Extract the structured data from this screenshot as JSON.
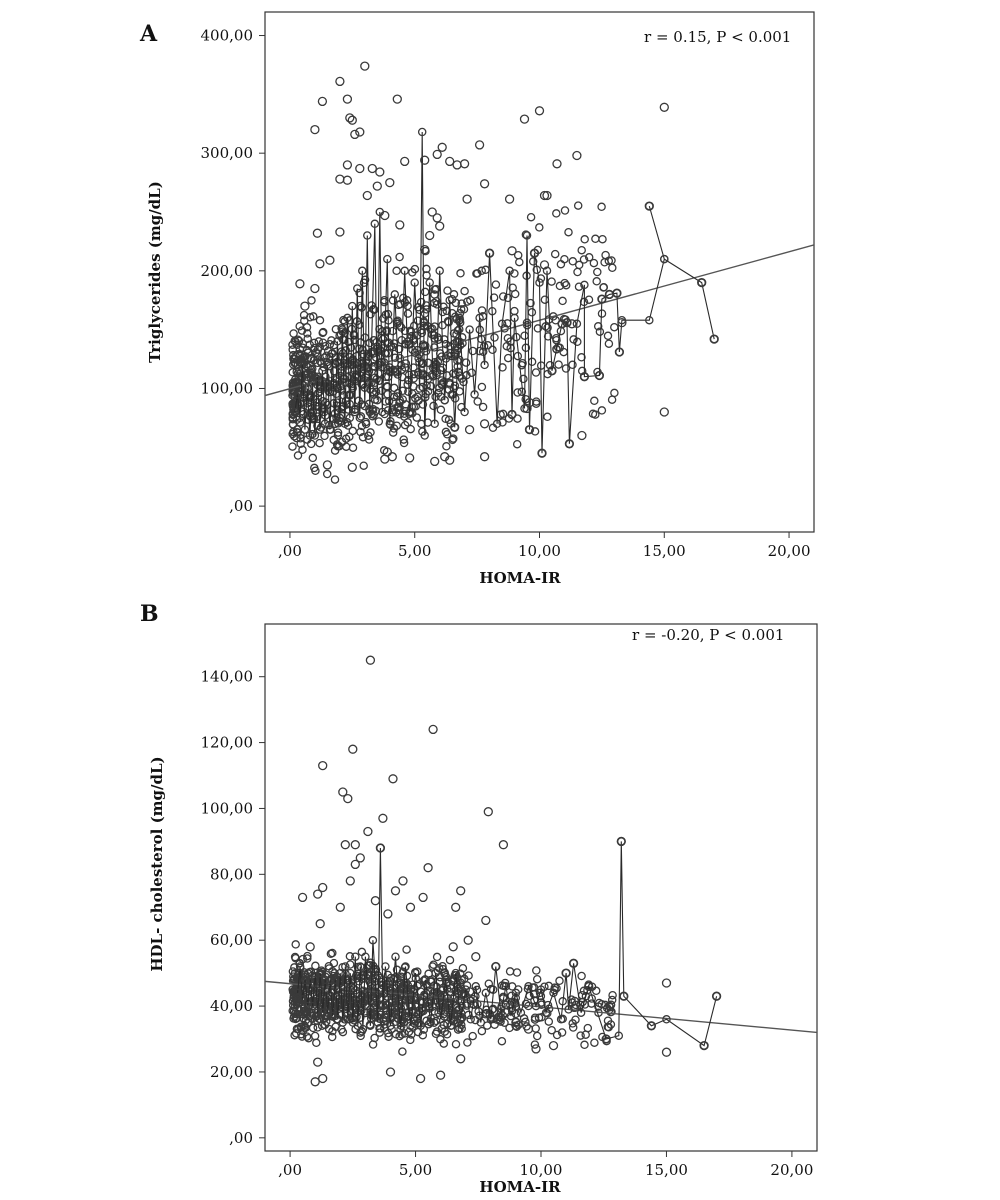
{
  "chart_data": [
    {
      "panel": "A",
      "type": "scatter",
      "annotation": "r = 0.15, P < 0.001",
      "xlabel": "HOMA-IR",
      "ylabel": "Triglycerides (mg/dL)",
      "xlim": [
        -1,
        21
      ],
      "ylim": [
        -22,
        420
      ],
      "x_ticks": [
        0,
        5,
        10,
        15,
        20
      ],
      "x_tick_labels": [
        ",00",
        "5,00",
        "10,00",
        "15,00",
        "20,00"
      ],
      "y_ticks": [
        0,
        100,
        200,
        300,
        400
      ],
      "y_tick_labels": [
        ",00",
        "100,00",
        "200,00",
        "300,00",
        "400,00"
      ],
      "fit_line": {
        "x": [
          -1,
          21
        ],
        "y": [
          94,
          222
        ]
      },
      "outlier_points": [
        [
          0.4,
          189
        ],
        [
          1.0,
          320
        ],
        [
          1.3,
          344
        ],
        [
          1.1,
          232
        ],
        [
          2.0,
          361
        ],
        [
          2.3,
          346
        ],
        [
          2.4,
          330
        ],
        [
          2.5,
          328
        ],
        [
          2.8,
          318
        ],
        [
          2.6,
          316
        ],
        [
          3.0,
          374
        ],
        [
          2.3,
          290
        ],
        [
          2.8,
          287
        ],
        [
          3.3,
          287
        ],
        [
          3.6,
          284
        ],
        [
          2.0,
          278
        ],
        [
          2.3,
          277
        ],
        [
          4.3,
          346
        ],
        [
          4.6,
          293
        ],
        [
          5.4,
          294
        ],
        [
          6.1,
          305
        ],
        [
          5.9,
          299
        ],
        [
          6.4,
          293
        ],
        [
          6.7,
          290
        ],
        [
          7.0,
          291
        ],
        [
          7.6,
          307
        ],
        [
          7.8,
          274
        ],
        [
          7.1,
          261
        ],
        [
          8.8,
          261
        ],
        [
          9.4,
          329
        ],
        [
          10.0,
          336
        ],
        [
          10.7,
          291
        ],
        [
          11.5,
          298
        ],
        [
          10.2,
          264
        ],
        [
          10.3,
          264
        ],
        [
          15.0,
          339
        ],
        [
          15.0,
          80
        ],
        [
          12.4,
          111
        ],
        [
          8.9,
          217
        ],
        [
          9.8,
          215
        ],
        [
          10.2,
          205
        ],
        [
          8.0,
          215
        ],
        [
          9.5,
          83
        ],
        [
          9.6,
          88
        ],
        [
          10.1,
          45
        ],
        [
          11.2,
          53
        ],
        [
          11.7,
          60
        ],
        [
          7.8,
          42
        ],
        [
          6.2,
          42
        ],
        [
          5.8,
          38
        ],
        [
          6.4,
          39
        ],
        [
          4.8,
          41
        ],
        [
          7.2,
          65
        ],
        [
          7.8,
          70
        ],
        [
          8.9,
          78
        ],
        [
          9.6,
          65
        ],
        [
          6.6,
          67
        ],
        [
          10.5,
          115
        ],
        [
          11.8,
          110
        ],
        [
          11.1,
          156
        ],
        [
          10.9,
          155
        ],
        [
          11.3,
          155
        ],
        [
          12.8,
          180
        ],
        [
          13.1,
          181
        ],
        [
          12.5,
          176
        ],
        [
          14.4,
          255
        ],
        [
          16.5,
          190
        ],
        [
          17.0,
          142
        ],
        [
          13.2,
          131
        ],
        [
          13.3,
          156
        ],
        [
          5.7,
          250
        ],
        [
          5.9,
          245
        ],
        [
          6.0,
          238
        ],
        [
          5.4,
          218
        ],
        [
          5.6,
          230
        ],
        [
          4.0,
          275
        ],
        [
          3.1,
          264
        ],
        [
          3.5,
          272
        ],
        [
          3.8,
          247
        ],
        [
          4.4,
          239
        ],
        [
          2.0,
          233
        ],
        [
          1.6,
          209
        ],
        [
          1.2,
          206
        ],
        [
          1.0,
          185
        ],
        [
          0.6,
          170
        ],
        [
          4.1,
          42
        ],
        [
          3.9,
          46
        ],
        [
          1.5,
          35
        ],
        [
          2.5,
          33
        ],
        [
          3.8,
          40
        ]
      ],
      "trace_points": [
        [
          14.4,
          255
        ],
        [
          15.0,
          210
        ],
        [
          16.5,
          190
        ],
        [
          17.0,
          142
        ],
        [
          16.5,
          190
        ],
        [
          15.0,
          210
        ],
        [
          14.4,
          158
        ],
        [
          13.3,
          158
        ],
        [
          13.2,
          131
        ],
        [
          13.1,
          181
        ],
        [
          12.8,
          180
        ],
        [
          12.5,
          176
        ],
        [
          12.4,
          111
        ],
        [
          11.8,
          110
        ],
        [
          11.8,
          188
        ],
        [
          11.5,
          155
        ],
        [
          11.2,
          53
        ],
        [
          11.1,
          156
        ],
        [
          10.9,
          155
        ],
        [
          10.5,
          115
        ],
        [
          10.3,
          200
        ],
        [
          10.1,
          45
        ],
        [
          10.0,
          190
        ],
        [
          9.8,
          215
        ],
        [
          9.6,
          65
        ],
        [
          9.5,
          230
        ],
        [
          9.4,
          83
        ],
        [
          9.0,
          160
        ],
        [
          8.9,
          78
        ],
        [
          8.8,
          200
        ],
        [
          8.5,
          155
        ],
        [
          8.3,
          70
        ],
        [
          8.0,
          215
        ],
        [
          7.8,
          120
        ],
        [
          7.6,
          160
        ],
        [
          7.4,
          95
        ],
        [
          7.2,
          150
        ],
        [
          7.0,
          80
        ],
        [
          6.8,
          160
        ],
        [
          6.6,
          67
        ],
        [
          6.4,
          175
        ],
        [
          6.2,
          90
        ],
        [
          6.0,
          200
        ],
        [
          5.8,
          70
        ],
        [
          5.6,
          190
        ],
        [
          5.4,
          60
        ],
        [
          5.3,
          318
        ],
        [
          5.2,
          100
        ],
        [
          5.0,
          190
        ],
        [
          4.8,
          80
        ],
        [
          4.6,
          200
        ],
        [
          4.4,
          90
        ],
        [
          4.2,
          180
        ],
        [
          4.0,
          70
        ],
        [
          3.9,
          210
        ],
        [
          3.7,
          80
        ],
        [
          3.6,
          250
        ],
        [
          3.5,
          90
        ],
        [
          3.4,
          240
        ],
        [
          3.2,
          80
        ],
        [
          3.1,
          230
        ],
        [
          3.0,
          85
        ],
        [
          2.9,
          200
        ],
        [
          2.8,
          75
        ],
        [
          2.7,
          185
        ],
        [
          2.6,
          80
        ],
        [
          2.5,
          170
        ],
        [
          2.4,
          75
        ],
        [
          2.3,
          160
        ],
        [
          2.2,
          70
        ],
        [
          2.1,
          150
        ],
        [
          2.0,
          75
        ],
        [
          1.9,
          140
        ],
        [
          1.8,
          70
        ],
        [
          1.7,
          130
        ],
        [
          1.6,
          65
        ],
        [
          1.5,
          120
        ],
        [
          1.4,
          70
        ],
        [
          1.3,
          115
        ],
        [
          1.2,
          65
        ],
        [
          1.1,
          110
        ],
        [
          1.0,
          60
        ],
        [
          0.9,
          105
        ],
        [
          0.8,
          60
        ],
        [
          0.7,
          100
        ],
        [
          0.6,
          65
        ],
        [
          0.5,
          120
        ],
        [
          0.4,
          75
        ],
        [
          0.3,
          95
        ],
        [
          0.2,
          80
        ]
      ]
    },
    {
      "panel": "B",
      "type": "scatter",
      "annotation": "r = -0.20, P < 0.001",
      "xlabel": "HOMA-IR",
      "ylabel": "HDL- cholesterol (mg/dL)",
      "xlim": [
        -1,
        21
      ],
      "ylim": [
        -4,
        156
      ],
      "x_ticks": [
        0,
        5,
        10,
        15,
        20
      ],
      "x_tick_labels": [
        ",00",
        "5,00",
        "10,00",
        "15,00",
        "20,00"
      ],
      "y_ticks": [
        0,
        20,
        40,
        60,
        80,
        100,
        120,
        140
      ],
      "y_tick_labels": [
        ",00",
        "20,00",
        "40,00",
        "60,00",
        "80,00",
        "100,00",
        "120,00",
        "140,00"
      ],
      "fit_line": {
        "x": [
          -1,
          21
        ],
        "y": [
          47.5,
          32
        ]
      },
      "outlier_points": [
        [
          3.2,
          145
        ],
        [
          5.7,
          124
        ],
        [
          2.5,
          118
        ],
        [
          1.3,
          113
        ],
        [
          4.1,
          109
        ],
        [
          2.1,
          105
        ],
        [
          2.3,
          103
        ],
        [
          7.9,
          99
        ],
        [
          2.6,
          89
        ],
        [
          8.5,
          89
        ],
        [
          3.7,
          97
        ],
        [
          3.1,
          93
        ],
        [
          3.6,
          88
        ],
        [
          2.2,
          89
        ],
        [
          5.5,
          82
        ],
        [
          2.6,
          83
        ],
        [
          2.4,
          78
        ],
        [
          1.3,
          76
        ],
        [
          6.8,
          75
        ],
        [
          7.8,
          66
        ],
        [
          0.5,
          73
        ],
        [
          1.1,
          74
        ],
        [
          1.2,
          65
        ],
        [
          6.6,
          70
        ],
        [
          5.3,
          73
        ],
        [
          0.8,
          58
        ],
        [
          1.1,
          23
        ],
        [
          1.0,
          17
        ],
        [
          1.3,
          18
        ],
        [
          4.0,
          20
        ],
        [
          5.2,
          18
        ],
        [
          6.0,
          19
        ],
        [
          6.8,
          24
        ],
        [
          9.8,
          27
        ],
        [
          12.6,
          30
        ],
        [
          13.2,
          90
        ],
        [
          13.3,
          43
        ],
        [
          14.4,
          34
        ],
        [
          15.0,
          47
        ],
        [
          15.0,
          26
        ],
        [
          16.5,
          28
        ],
        [
          17.0,
          43
        ],
        [
          11.3,
          53
        ],
        [
          11.0,
          50
        ],
        [
          11.9,
          46
        ],
        [
          10.5,
          28
        ],
        [
          9.5,
          33
        ],
        [
          9.0,
          35
        ],
        [
          8.6,
          38
        ],
        [
          8.2,
          52
        ],
        [
          7.4,
          55
        ],
        [
          7.1,
          60
        ],
        [
          6.5,
          58
        ],
        [
          4.5,
          78
        ],
        [
          4.2,
          75
        ],
        [
          3.9,
          68
        ],
        [
          2.8,
          85
        ],
        [
          3.4,
          72
        ],
        [
          4.8,
          70
        ],
        [
          2.0,
          70
        ]
      ],
      "trace_points": [
        [
          17.0,
          43
        ],
        [
          16.5,
          28
        ],
        [
          15.0,
          36
        ],
        [
          14.4,
          34
        ],
        [
          13.3,
          43
        ],
        [
          13.2,
          90
        ],
        [
          13.1,
          31
        ],
        [
          12.6,
          30
        ],
        [
          11.9,
          46
        ],
        [
          11.6,
          38
        ],
        [
          11.3,
          53
        ],
        [
          11.1,
          39
        ],
        [
          11.0,
          50
        ],
        [
          10.8,
          36
        ],
        [
          10.5,
          44
        ],
        [
          10.2,
          38
        ],
        [
          10.0,
          45
        ],
        [
          9.8,
          40
        ],
        [
          9.5,
          46
        ],
        [
          9.2,
          38
        ],
        [
          9.0,
          44
        ],
        [
          8.8,
          37
        ],
        [
          8.6,
          46
        ],
        [
          8.4,
          38
        ],
        [
          8.2,
          52
        ],
        [
          8.0,
          36
        ],
        [
          7.8,
          44
        ],
        [
          7.6,
          35
        ],
        [
          7.4,
          46
        ],
        [
          7.2,
          36
        ],
        [
          7.0,
          45
        ],
        [
          6.8,
          36
        ],
        [
          6.6,
          50
        ],
        [
          6.4,
          34
        ],
        [
          6.2,
          48
        ],
        [
          6.0,
          36
        ],
        [
          5.8,
          50
        ],
        [
          5.6,
          35
        ],
        [
          5.4,
          48
        ],
        [
          5.2,
          34
        ],
        [
          5.0,
          50
        ],
        [
          4.8,
          34
        ],
        [
          4.6,
          52
        ],
        [
          4.4,
          33
        ],
        [
          4.2,
          55
        ],
        [
          4.0,
          34
        ],
        [
          3.8,
          52
        ],
        [
          3.7,
          40
        ],
        [
          3.6,
          88
        ],
        [
          3.5,
          35
        ],
        [
          3.3,
          60
        ],
        [
          3.2,
          34
        ],
        [
          3.0,
          55
        ],
        [
          2.9,
          33
        ],
        [
          2.8,
          52
        ],
        [
          2.7,
          34
        ],
        [
          2.6,
          55
        ],
        [
          2.5,
          35
        ],
        [
          2.4,
          50
        ],
        [
          2.3,
          36
        ],
        [
          2.2,
          52
        ],
        [
          2.1,
          35
        ],
        [
          2.0,
          50
        ],
        [
          1.9,
          36
        ],
        [
          1.8,
          48
        ],
        [
          1.7,
          37
        ],
        [
          1.6,
          48
        ],
        [
          1.5,
          38
        ],
        [
          1.4,
          48
        ],
        [
          1.3,
          38
        ],
        [
          1.2,
          50
        ],
        [
          1.1,
          38
        ],
        [
          1.0,
          50
        ],
        [
          0.9,
          40
        ],
        [
          0.8,
          48
        ],
        [
          0.7,
          40
        ],
        [
          0.6,
          48
        ],
        [
          0.5,
          42
        ],
        [
          0.4,
          52
        ],
        [
          0.3,
          44
        ]
      ]
    }
  ]
}
